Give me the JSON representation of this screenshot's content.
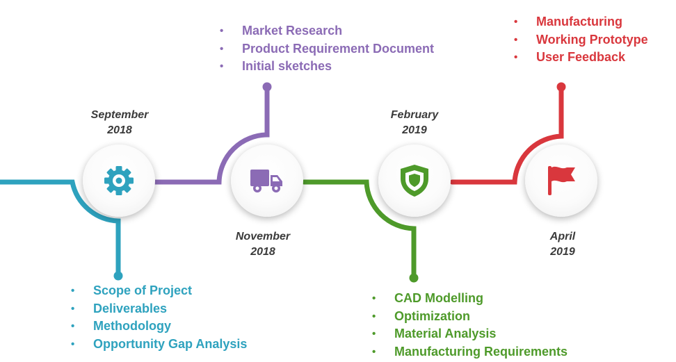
{
  "colors": {
    "teal": "#2EA2BE",
    "purple": "#8B6BB5",
    "green": "#4E9A2A",
    "red": "#D9373D"
  },
  "milestones": [
    {
      "icon": "gear-icon",
      "date": {
        "month": "September",
        "year": "2018"
      },
      "items": [
        "Scope of Project",
        "Deliverables",
        "Methodology",
        "Opportunity Gap Analysis"
      ]
    },
    {
      "icon": "truck-icon",
      "date": {
        "month": "November",
        "year": "2018"
      },
      "items": [
        "Market Research",
        "Product Requirement Document",
        "Initial sketches"
      ]
    },
    {
      "icon": "shield-icon",
      "date": {
        "month": "February",
        "year": "2019"
      },
      "items": [
        "CAD Modelling",
        "Optimization",
        "Material Analysis",
        "Manufacturing Requirements"
      ]
    },
    {
      "icon": "flag-icon",
      "date": {
        "month": "April",
        "year": "2019"
      },
      "items": [
        "Manufacturing",
        "Working Prototype",
        "User Feedback"
      ]
    }
  ]
}
